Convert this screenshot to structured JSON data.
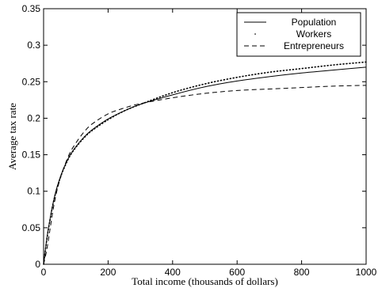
{
  "chart_data": {
    "type": "line",
    "title": "",
    "xlabel": "Total income (thousands of dollars)",
    "ylabel": "Average tax rate",
    "xlim": [
      0,
      1000
    ],
    "ylim": [
      0,
      0.35
    ],
    "xticks": [
      0,
      200,
      400,
      600,
      800,
      1000
    ],
    "yticks": [
      0,
      0.05,
      0.1,
      0.15,
      0.2,
      0.25,
      0.3,
      0.35
    ],
    "xtick_labels": [
      "0",
      "200",
      "400",
      "600",
      "800",
      "1000"
    ],
    "ytick_labels": [
      "0",
      "0.05",
      "0.1",
      "0.15",
      "0.2",
      "0.25",
      "0.3",
      "0.35"
    ],
    "grid": false,
    "legend_position": "top-right",
    "x": [
      0,
      10,
      20,
      30,
      40,
      50,
      60,
      80,
      100,
      125,
      150,
      200,
      250,
      300,
      400,
      500,
      600,
      700,
      800,
      900,
      1000
    ],
    "series": [
      {
        "name": "Population",
        "style": "solid",
        "values": [
          0,
          0.035,
          0.062,
          0.085,
          0.103,
          0.117,
          0.129,
          0.148,
          0.161,
          0.174,
          0.184,
          0.199,
          0.21,
          0.219,
          0.232,
          0.243,
          0.251,
          0.257,
          0.262,
          0.266,
          0.27
        ]
      },
      {
        "name": "Workers",
        "style": "dotted",
        "values": [
          0,
          0.034,
          0.061,
          0.084,
          0.102,
          0.116,
          0.128,
          0.147,
          0.16,
          0.173,
          0.183,
          0.198,
          0.21,
          0.219,
          0.235,
          0.247,
          0.256,
          0.263,
          0.268,
          0.273,
          0.277
        ]
      },
      {
        "name": "Entrepreneurs",
        "style": "dashed",
        "values": [
          0,
          0.02,
          0.048,
          0.076,
          0.098,
          0.115,
          0.129,
          0.151,
          0.166,
          0.181,
          0.192,
          0.206,
          0.214,
          0.22,
          0.228,
          0.234,
          0.238,
          0.24,
          0.242,
          0.244,
          0.245
        ]
      }
    ]
  }
}
